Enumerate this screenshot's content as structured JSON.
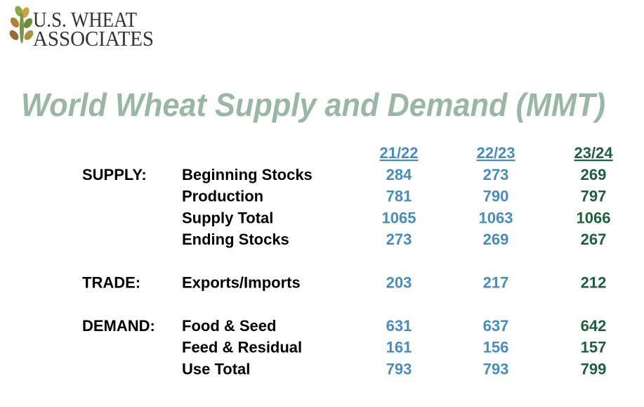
{
  "logo": {
    "line1": "U.S. WHEAT",
    "line2": "ASSOCIATES"
  },
  "title": "World Wheat Supply and Demand (MMT)",
  "table": {
    "columns": [
      "21/22",
      "22/23",
      "23/24"
    ],
    "column_colors": [
      "#4a8cb8",
      "#4a8cb8",
      "#1f5f3d"
    ],
    "sections": [
      {
        "label": "SUPPLY:",
        "rows": [
          {
            "label": "Beginning Stocks",
            "values": [
              284,
              273,
              269
            ]
          },
          {
            "label": "Production",
            "values": [
              781,
              790,
              797
            ]
          },
          {
            "label": "Supply Total",
            "values": [
              1065,
              1063,
              1066
            ]
          },
          {
            "label": "Ending Stocks",
            "values": [
              273,
              269,
              267
            ]
          }
        ]
      },
      {
        "label": "TRADE:",
        "rows": [
          {
            "label": "Exports/Imports",
            "values": [
              203,
              217,
              212
            ]
          }
        ]
      },
      {
        "label": "DEMAND:",
        "rows": [
          {
            "label": "Food & Seed",
            "values": [
              631,
              637,
              642
            ]
          },
          {
            "label": "Feed & Residual",
            "values": [
              161,
              156,
              157
            ]
          },
          {
            "label": "Use Total",
            "values": [
              793,
              793,
              799
            ]
          }
        ]
      }
    ]
  }
}
